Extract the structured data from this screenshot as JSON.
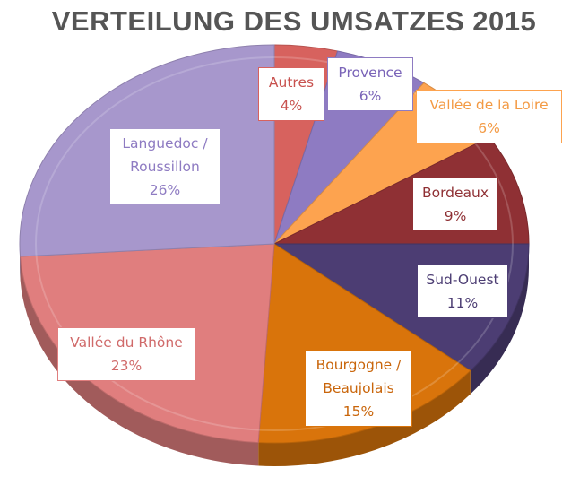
{
  "chart_data": {
    "type": "pie",
    "title": "VERTEILUNG DES UMSATZES 2015",
    "slices": [
      {
        "label": "Autres",
        "value": 4,
        "value_label": "4%",
        "color": "#d7625e"
      },
      {
        "label": "Provence",
        "value": 6,
        "value_label": "6%",
        "color": "#8e7bc2"
      },
      {
        "label": "Vallée de la Loire",
        "value": 6,
        "value_label": "6%",
        "color": "#fda34f"
      },
      {
        "label": "Bordeaux",
        "value": 9,
        "value_label": "9%",
        "color": "#8f3034"
      },
      {
        "label": "Sud-Ouest",
        "value": 11,
        "value_label": "11%",
        "color": "#4c3d73"
      },
      {
        "label": "Bourgogne / Beaujolais",
        "value": 15,
        "value_label": "15%",
        "color": "#d9740b"
      },
      {
        "label": "Vallée du Rhône",
        "value": 23,
        "value_label": "23%",
        "color": "#e07e7e"
      },
      {
        "label": "Languedoc / Roussillon",
        "value": 26,
        "value_label": "26%",
        "color": "#a797cc"
      }
    ],
    "legend": "none"
  }
}
